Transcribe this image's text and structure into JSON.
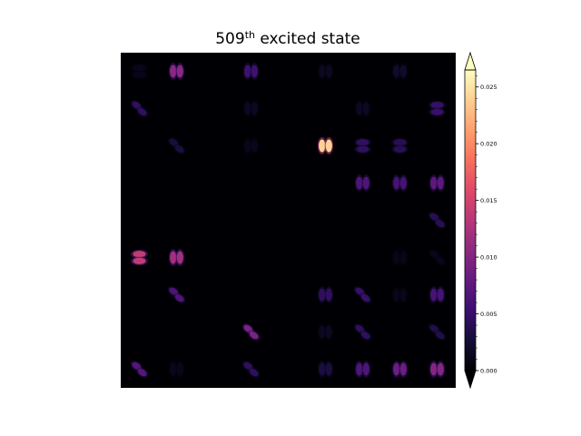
{
  "chart_data": {
    "type": "heatmap",
    "title_base": "509",
    "title_sup": "th",
    "title_rest": " excited state",
    "colormap": "magma",
    "colorbar": {
      "vmin": 0.0,
      "vmax": 0.0265,
      "ticks": [
        0.0,
        0.005,
        0.01,
        0.015,
        0.02,
        0.025
      ],
      "tick_labels": [
        "0.000",
        "0.005",
        "0.010",
        "0.015",
        "0.020",
        "0.025"
      ],
      "extend": "both"
    },
    "axes_visible": false,
    "grid": {
      "rows": 9,
      "cols": 9
    },
    "spots": [
      {
        "row": 0,
        "col": 0,
        "value": 0.0012,
        "orient": "h"
      },
      {
        "row": 0,
        "col": 1,
        "value": 0.0105,
        "orient": "v"
      },
      {
        "row": 0,
        "col": 3,
        "value": 0.0055,
        "orient": "v"
      },
      {
        "row": 0,
        "col": 5,
        "value": 0.0015,
        "orient": "v"
      },
      {
        "row": 0,
        "col": 7,
        "value": 0.002,
        "orient": "v"
      },
      {
        "row": 1,
        "col": 0,
        "value": 0.0045,
        "orient": "d"
      },
      {
        "row": 1,
        "col": 3,
        "value": 0.0015,
        "orient": "v"
      },
      {
        "row": 1,
        "col": 6,
        "value": 0.0015,
        "orient": "v"
      },
      {
        "row": 1,
        "col": 8,
        "value": 0.005,
        "orient": "h"
      },
      {
        "row": 2,
        "col": 1,
        "value": 0.003,
        "orient": "d"
      },
      {
        "row": 2,
        "col": 3,
        "value": 0.0012,
        "orient": "v"
      },
      {
        "row": 2,
        "col": 5,
        "value": 0.024,
        "orient": "v"
      },
      {
        "row": 2,
        "col": 6,
        "value": 0.0045,
        "orient": "h"
      },
      {
        "row": 2,
        "col": 7,
        "value": 0.004,
        "orient": "h"
      },
      {
        "row": 3,
        "col": 6,
        "value": 0.0065,
        "orient": "v"
      },
      {
        "row": 3,
        "col": 7,
        "value": 0.006,
        "orient": "v"
      },
      {
        "row": 3,
        "col": 8,
        "value": 0.0075,
        "orient": "v"
      },
      {
        "row": 4,
        "col": 8,
        "value": 0.004,
        "orient": "d"
      },
      {
        "row": 5,
        "col": 0,
        "value": 0.014,
        "orient": "h"
      },
      {
        "row": 5,
        "col": 1,
        "value": 0.012,
        "orient": "v"
      },
      {
        "row": 5,
        "col": 7,
        "value": 0.001,
        "orient": "v"
      },
      {
        "row": 5,
        "col": 8,
        "value": 0.0012,
        "orient": "d"
      },
      {
        "row": 6,
        "col": 1,
        "value": 0.0065,
        "orient": "d"
      },
      {
        "row": 6,
        "col": 5,
        "value": 0.0045,
        "orient": "v"
      },
      {
        "row": 6,
        "col": 6,
        "value": 0.005,
        "orient": "d"
      },
      {
        "row": 6,
        "col": 7,
        "value": 0.0012,
        "orient": "v"
      },
      {
        "row": 6,
        "col": 8,
        "value": 0.006,
        "orient": "v"
      },
      {
        "row": 7,
        "col": 3,
        "value": 0.0095,
        "orient": "d"
      },
      {
        "row": 7,
        "col": 5,
        "value": 0.0015,
        "orient": "v"
      },
      {
        "row": 7,
        "col": 6,
        "value": 0.0045,
        "orient": "d"
      },
      {
        "row": 7,
        "col": 8,
        "value": 0.0035,
        "orient": "d"
      },
      {
        "row": 8,
        "col": 0,
        "value": 0.007,
        "orient": "d"
      },
      {
        "row": 8,
        "col": 1,
        "value": 0.0012,
        "orient": "v"
      },
      {
        "row": 8,
        "col": 3,
        "value": 0.0045,
        "orient": "d"
      },
      {
        "row": 8,
        "col": 5,
        "value": 0.003,
        "orient": "v"
      },
      {
        "row": 8,
        "col": 6,
        "value": 0.0065,
        "orient": "v"
      },
      {
        "row": 8,
        "col": 7,
        "value": 0.0085,
        "orient": "v"
      },
      {
        "row": 8,
        "col": 8,
        "value": 0.01,
        "orient": "v"
      }
    ]
  }
}
